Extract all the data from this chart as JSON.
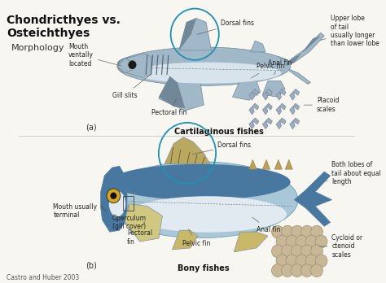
{
  "title_line1": "Chondricthyes vs.",
  "title_line2": "Osteichthyes",
  "subtitle": "Morphology",
  "caption": "Castro and Huber 2003",
  "label_a": "(a)",
  "label_b": "(b)",
  "cartilaginous_label": "Cartilaginous fishes",
  "bony_label": "Bony fishes",
  "bg_color": "#f8f6f0",
  "title_color": "#111111",
  "shark_body_color": "#a0b8c8",
  "shark_belly_color": "#d8e4ec",
  "shark_dark_color": "#708898",
  "bony_body_color": "#a8c8d8",
  "bony_belly_color": "#e0eaf0",
  "bony_dark_color": "#4878a0",
  "circle_color": "#2090b0",
  "ann_fontsize": 5.5,
  "ann_color": "#222222",
  "label_fontsize": 7,
  "title_fontsize": 10,
  "subtitle_fontsize": 8
}
